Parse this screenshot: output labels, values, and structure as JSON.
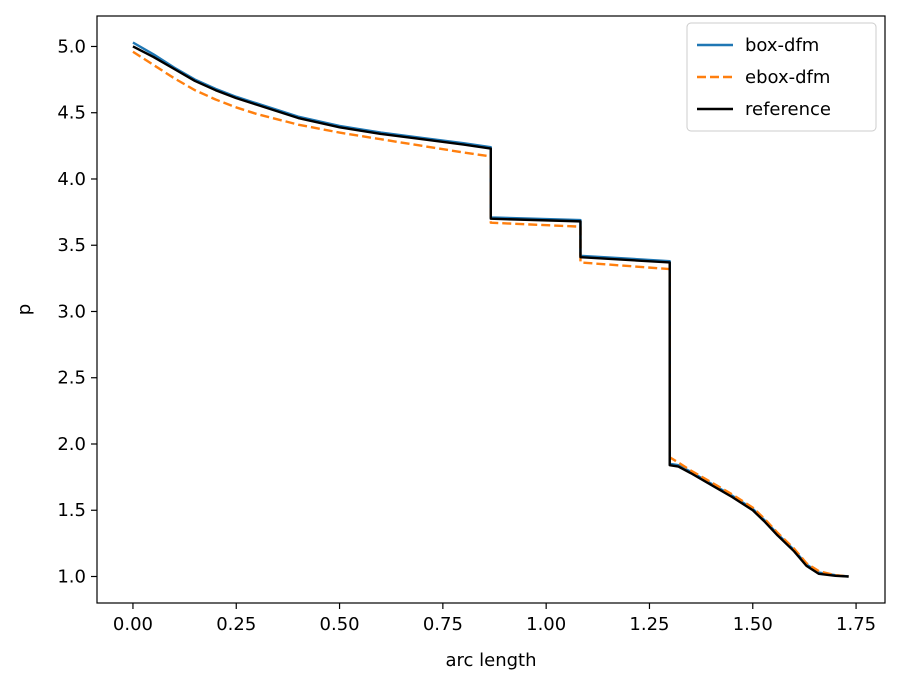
{
  "chart_data": {
    "type": "line",
    "title": "",
    "xlabel": "arc length",
    "ylabel": "p",
    "xlim": [
      -0.087,
      1.82
    ],
    "ylim": [
      0.8,
      5.23
    ],
    "x_ticks": [
      0.0,
      0.25,
      0.5,
      0.75,
      1.0,
      1.25,
      1.5,
      1.75
    ],
    "x_tick_labels": [
      "0.00",
      "0.25",
      "0.50",
      "0.75",
      "1.00",
      "1.25",
      "1.50",
      "1.75"
    ],
    "y_ticks": [
      1.0,
      1.5,
      2.0,
      2.5,
      3.0,
      3.5,
      4.0,
      4.5,
      5.0
    ],
    "y_tick_labels": [
      "1.0",
      "1.5",
      "2.0",
      "2.5",
      "3.0",
      "3.5",
      "4.0",
      "4.5",
      "5.0"
    ],
    "grid": false,
    "legend_position": "top-right",
    "series": [
      {
        "name": "box-dfm",
        "color": "#1f77b4",
        "style": "solid",
        "x": [
          0.0,
          0.05,
          0.1,
          0.15,
          0.2,
          0.25,
          0.3,
          0.4,
          0.5,
          0.6,
          0.7,
          0.8,
          0.866,
          0.866,
          1.083,
          1.083,
          1.299,
          1.299,
          1.32,
          1.35,
          1.4,
          1.45,
          1.5,
          1.53,
          1.56,
          1.6,
          1.63,
          1.66,
          1.7,
          1.732
        ],
        "y": [
          5.03,
          4.94,
          4.84,
          4.75,
          4.68,
          4.62,
          4.57,
          4.47,
          4.4,
          4.35,
          4.31,
          4.27,
          4.24,
          3.71,
          3.69,
          3.42,
          3.38,
          1.85,
          1.84,
          1.79,
          1.7,
          1.61,
          1.51,
          1.42,
          1.32,
          1.2,
          1.09,
          1.03,
          1.01,
          1.0
        ]
      },
      {
        "name": "ebox-dfm",
        "color": "#ff7f0e",
        "style": "dashed",
        "x": [
          0.0,
          0.05,
          0.1,
          0.15,
          0.2,
          0.25,
          0.3,
          0.4,
          0.5,
          0.6,
          0.7,
          0.8,
          0.866,
          0.866,
          1.083,
          1.083,
          1.299,
          1.299,
          1.32,
          1.35,
          1.4,
          1.45,
          1.5,
          1.53,
          1.56,
          1.6,
          1.63,
          1.66,
          1.7,
          1.732
        ],
        "y": [
          4.96,
          4.86,
          4.76,
          4.67,
          4.6,
          4.54,
          4.49,
          4.41,
          4.35,
          4.3,
          4.25,
          4.2,
          4.17,
          3.67,
          3.64,
          3.37,
          3.32,
          1.9,
          1.86,
          1.8,
          1.71,
          1.62,
          1.52,
          1.43,
          1.33,
          1.21,
          1.1,
          1.04,
          1.01,
          1.0
        ]
      },
      {
        "name": "reference",
        "color": "#000000",
        "style": "solid",
        "x": [
          0.0,
          0.05,
          0.1,
          0.15,
          0.2,
          0.25,
          0.3,
          0.4,
          0.5,
          0.6,
          0.7,
          0.8,
          0.866,
          0.866,
          1.083,
          1.083,
          1.299,
          1.299,
          1.32,
          1.35,
          1.4,
          1.45,
          1.5,
          1.53,
          1.56,
          1.6,
          1.63,
          1.66,
          1.7,
          1.732
        ],
        "y": [
          5.0,
          4.92,
          4.83,
          4.74,
          4.67,
          4.61,
          4.56,
          4.46,
          4.39,
          4.34,
          4.3,
          4.26,
          4.23,
          3.7,
          3.68,
          3.41,
          3.37,
          1.84,
          1.83,
          1.78,
          1.69,
          1.6,
          1.5,
          1.41,
          1.31,
          1.19,
          1.08,
          1.02,
          1.005,
          1.0
        ]
      }
    ]
  }
}
